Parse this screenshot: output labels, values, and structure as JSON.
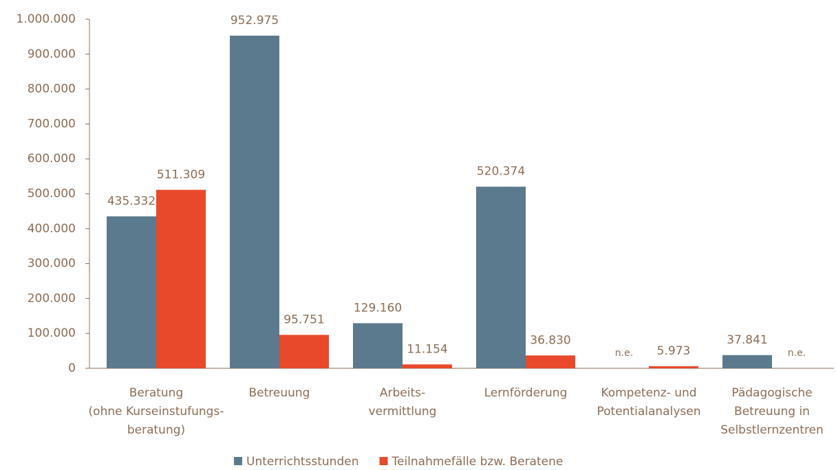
{
  "chart_data": {
    "type": "bar",
    "categories": [
      [
        "Beratung",
        "(ohne Kurseinstufungs-",
        "beratung)"
      ],
      [
        "Betreuung"
      ],
      [
        "Arbeits-",
        "vermittlung"
      ],
      [
        "Lernförderung"
      ],
      [
        "Kompetenz- und",
        "Potentialanalysen"
      ],
      [
        "Pädagogische",
        "Betreuung in",
        "Selbstlernzentren"
      ]
    ],
    "series": [
      {
        "name": "Unterrichtsstunden",
        "color": "#5b7a8d",
        "values": [
          435332,
          952975,
          129160,
          520374,
          null,
          37841
        ],
        "value_labels": [
          "435.332",
          "952.975",
          "129.160",
          "520.374",
          "n.e.",
          "37.841"
        ]
      },
      {
        "name": "Teilnahmefälle bzw. Beratene",
        "color": "#e8492b",
        "values": [
          511309,
          95751,
          11154,
          36830,
          5973,
          null
        ],
        "value_labels": [
          "511.309",
          "95.751",
          "11.154",
          "36.830",
          "5.973",
          "n.e."
        ]
      }
    ],
    "ylim": [
      0,
      1000000
    ],
    "yticks": [
      0,
      {
        "value": 100000,
        "label": "100.000"
      },
      {
        "value": 200000,
        "label": "200.000"
      },
      {
        "value": 300000,
        "label": "300.000"
      },
      {
        "value": 400000,
        "label": "400.000"
      },
      {
        "value": 500000,
        "label": "500.000"
      },
      {
        "value": 600000,
        "label": "600.000"
      },
      {
        "value": 700000,
        "label": "700.000"
      },
      {
        "value": 800000,
        "label": "800.000"
      },
      {
        "value": 900000,
        "label": "900.000"
      },
      {
        "value": 1000000,
        "label": "1.000.000"
      }
    ],
    "legend": "bottom"
  }
}
